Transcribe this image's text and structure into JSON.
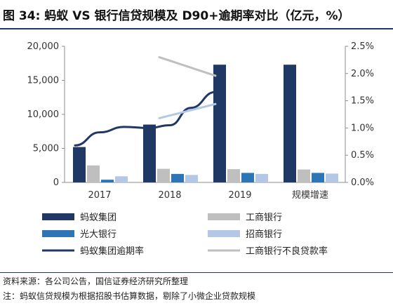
{
  "header": {
    "title": "图 34: 蚂蚁 VS 银行信贷规模及 D90+逾期率对比（亿元，%）"
  },
  "footer": {
    "source": "资料来源：各公司公告，国信证券经济研究所整理",
    "note": "注：蚂蚁信贷规模为根据招股书估算数据，剔除了小微企业贷款规模"
  },
  "chart_data": {
    "type": "bar",
    "categories": [
      "2017",
      "2018",
      "2019",
      "规模增速"
    ],
    "left_axis": {
      "min": 0,
      "max": 20000,
      "ticks": [
        "0",
        "5,000",
        "10,000",
        "15,000",
        "20,000"
      ]
    },
    "right_axis": {
      "min": 0,
      "max": 2.5,
      "ticks": [
        "0.0%",
        "0.5%",
        "1.0%",
        "1.5%",
        "2.0%",
        "2.5%"
      ]
    },
    "series": [
      {
        "name": "蚂蚁集团",
        "kind": "bar",
        "color": "#1f3864",
        "values": [
          5200,
          8500,
          17300,
          17300
        ]
      },
      {
        "name": "工商银行",
        "kind": "bar",
        "color": "#bfbfbf",
        "values": [
          2500,
          2000,
          1950,
          1900
        ]
      },
      {
        "name": "光大银行",
        "kind": "bar",
        "color": "#2e75b6",
        "values": [
          400,
          1250,
          1400,
          1400
        ]
      },
      {
        "name": "招商银行",
        "kind": "bar",
        "color": "#b4c7e7",
        "values": [
          900,
          1100,
          1250,
          1300
        ]
      },
      {
        "name": "蚂蚁集团逾期率",
        "kind": "line",
        "color": "#1f3864",
        "width": 3,
        "points": [
          [
            -0.7,
            0.68
          ],
          [
            0.0,
            0.92
          ],
          [
            0.7,
            1.02
          ],
          [
            1.4,
            1.0
          ],
          [
            2.0,
            1.05
          ],
          [
            2.6,
            1.37
          ],
          [
            3.3,
            1.66
          ]
        ]
      },
      {
        "name": "工商银行不良贷款率",
        "kind": "line",
        "color": "#bfbfbf",
        "width": 3,
        "points": [
          [
            1.7,
            2.3
          ],
          [
            3.3,
            1.96
          ]
        ]
      },
      {
        "name": "",
        "kind": "line",
        "color": "#b4c7e7",
        "width": 3,
        "points": [
          [
            1.7,
            1.18
          ],
          [
            3.3,
            1.44
          ]
        ]
      }
    ],
    "legend": [
      {
        "label": "蚂蚁集团",
        "shape": "rect",
        "color": "#1f3864"
      },
      {
        "label": "工商银行",
        "shape": "rect",
        "color": "#bfbfbf"
      },
      {
        "label": "光大银行",
        "shape": "rect",
        "color": "#2e75b6"
      },
      {
        "label": "招商银行",
        "shape": "rect",
        "color": "#b4c7e7"
      },
      {
        "label": "蚂蚁集团逾期率",
        "shape": "line",
        "color": "#1f3864"
      },
      {
        "label": "工商银行不良贷款率",
        "shape": "line",
        "color": "#bfbfbf"
      }
    ]
  }
}
